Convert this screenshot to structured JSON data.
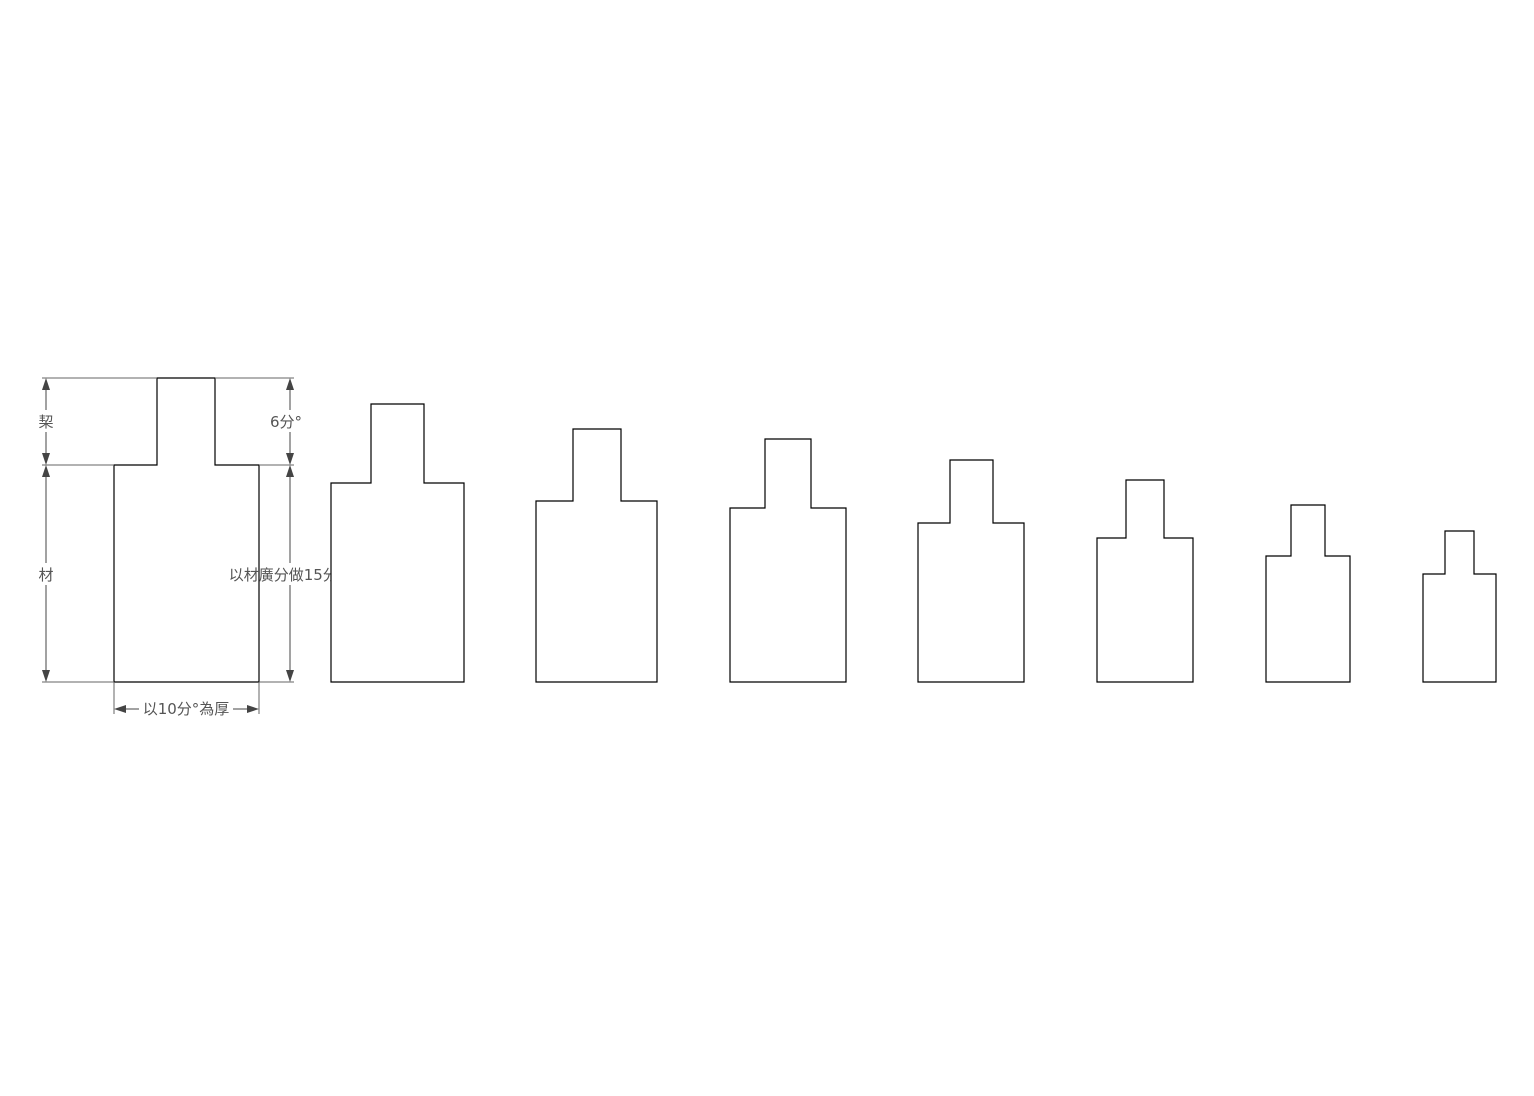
{
  "diagram": {
    "labels": {
      "qi": "栔",
      "cai": "材",
      "six_fen": "6分°",
      "width_15": "以材廣分做15分°",
      "thickness_10": "以10分°為厚"
    },
    "shape_count": 8,
    "colors": {
      "outline": "#000000",
      "dimension": "#444444",
      "text": "#555555",
      "background": "#ffffff"
    }
  }
}
